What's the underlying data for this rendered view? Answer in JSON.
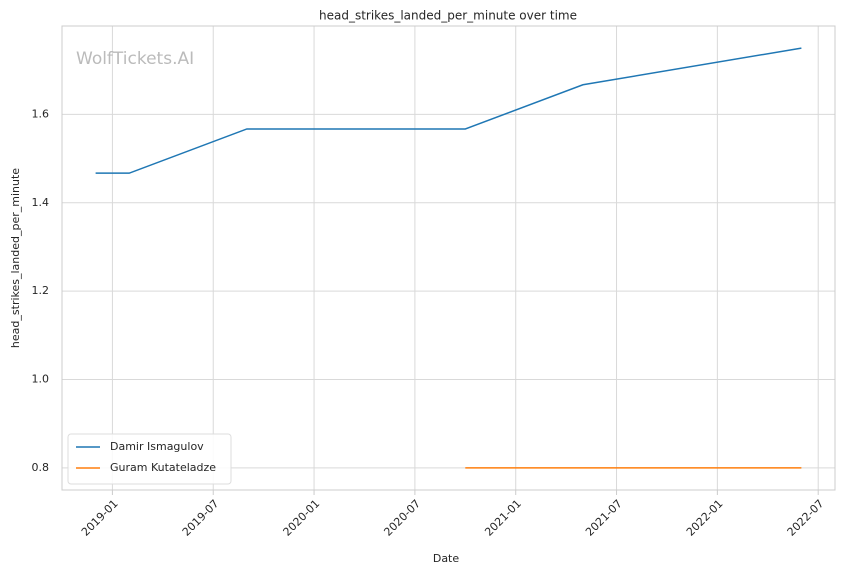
{
  "chart_data": {
    "type": "line",
    "title": "head_strikes_landed_per_minute over time",
    "xlabel": "Date",
    "ylabel": "head_strikes_landed_per_minute",
    "watermark": "WolfTickets.AI",
    "series": [
      {
        "name": "Damir Ismagulov",
        "color": "#1f77b4",
        "x": [
          "2018-12",
          "2019-02",
          "2019-09",
          "2020-10",
          "2021-05",
          "2022-06"
        ],
        "values": [
          1.467,
          1.467,
          1.567,
          1.567,
          1.667,
          1.75
        ]
      },
      {
        "name": "Guram Kutateladze",
        "color": "#ff7f0e",
        "x": [
          "2020-10",
          "2021-05",
          "2022-06"
        ],
        "values": [
          0.8,
          0.8,
          0.8
        ]
      }
    ],
    "xlim": [
      "2018-10",
      "2022-08"
    ],
    "xticks": [
      "2019-01",
      "2019-07",
      "2020-01",
      "2020-07",
      "2021-01",
      "2021-07",
      "2022-01",
      "2022-07"
    ],
    "ylim": [
      0.75,
      1.8
    ],
    "yticks": [
      0.8,
      {
        "value": 1,
        "label": "1.0"
      },
      1.2,
      1.4,
      1.6
    ],
    "grid": true,
    "legend": "lower left"
  }
}
